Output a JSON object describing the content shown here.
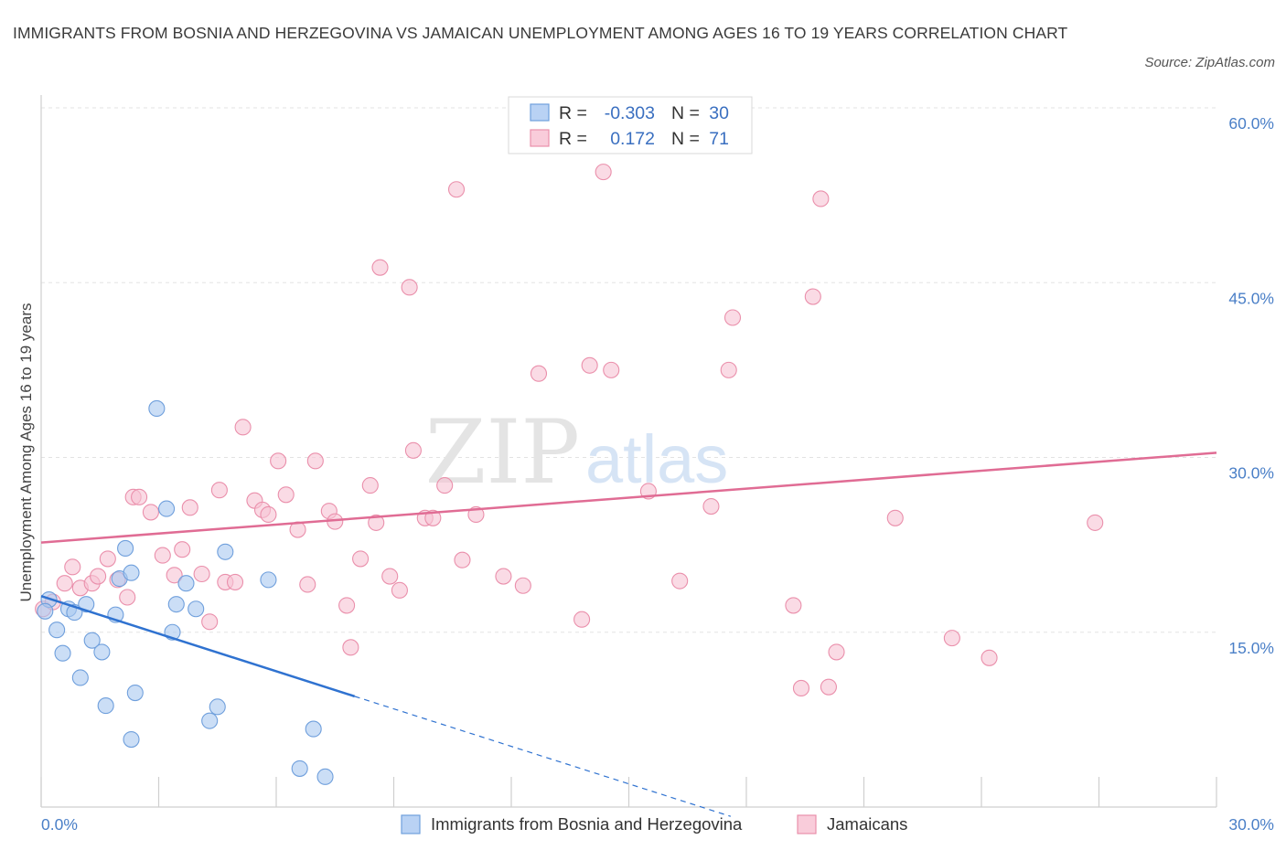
{
  "title": "IMMIGRANTS FROM BOSNIA AND HERZEGOVINA VS JAMAICAN UNEMPLOYMENT AMONG AGES 16 TO 19 YEARS CORRELATION CHART",
  "source": "Source: ZipAtlas.com",
  "colors": {
    "blue": "#a9c8f0",
    "blue_stroke": "#6f9fdc",
    "blue_line": "#2f72d0",
    "pink": "#f7c3d3",
    "pink_stroke": "#ea8fab",
    "pink_line": "#e06c94",
    "axis_label": "#4a7fc7"
  },
  "legend": {
    "rows": [
      {
        "r_label": "R =",
        "r_value": "-0.303",
        "n_label": "N =",
        "n_value": "30"
      },
      {
        "r_label": "R =",
        "r_value": "0.172",
        "n_label": "N =",
        "n_value": "71"
      }
    ]
  },
  "chart_data": {
    "type": "scatter",
    "title": "IMMIGRANTS FROM BOSNIA AND HERZEGOVINA VS JAMAICAN UNEMPLOYMENT AMONG AGES 16 TO 19 YEARS CORRELATION CHART",
    "xlabel": "",
    "ylabel": "Unemployment Among Ages 16 to 19 years",
    "xlim": [
      0,
      30
    ],
    "ylim": [
      0,
      60
    ],
    "x_tick_labels": [
      "0.0%",
      "30.0%"
    ],
    "y_ticks": [
      15,
      30,
      45,
      60
    ],
    "y_tick_labels": [
      "15.0%",
      "30.0%",
      "45.0%",
      "60.0%"
    ],
    "grid": true,
    "legend_position": "top-center",
    "series": [
      {
        "name": "Immigrants from Bosnia and Herzegovina",
        "color": "#a9c8f0",
        "points": [
          [
            0.2,
            17.8
          ],
          [
            0.4,
            15.2
          ],
          [
            0.55,
            13.2
          ],
          [
            0.7,
            17.0
          ],
          [
            0.85,
            16.7
          ],
          [
            1.0,
            11.1
          ],
          [
            1.15,
            17.4
          ],
          [
            1.3,
            14.3
          ],
          [
            1.55,
            13.3
          ],
          [
            1.65,
            8.7
          ],
          [
            1.9,
            16.5
          ],
          [
            2.0,
            19.6
          ],
          [
            2.15,
            22.2
          ],
          [
            2.3,
            5.8
          ],
          [
            2.4,
            9.8
          ],
          [
            2.95,
            34.2
          ],
          [
            3.2,
            25.6
          ],
          [
            3.35,
            15.0
          ],
          [
            3.45,
            17.4
          ],
          [
            3.7,
            19.2
          ],
          [
            3.95,
            17.0
          ],
          [
            4.3,
            7.4
          ],
          [
            4.5,
            8.6
          ],
          [
            4.7,
            21.9
          ],
          [
            5.8,
            19.5
          ],
          [
            6.6,
            3.3
          ],
          [
            6.95,
            6.7
          ],
          [
            7.25,
            2.6
          ],
          [
            0.1,
            16.8
          ],
          [
            2.3,
            20.1
          ]
        ],
        "trend": {
          "x0": 0,
          "y0": 18.1,
          "x1": 8.0,
          "y1": 9.5,
          "dash_to_x": 17.6,
          "dash_to_y": -0.8
        }
      },
      {
        "name": "Jamaicans",
        "color": "#f7c3d3",
        "points": [
          [
            0.05,
            17.0
          ],
          [
            0.3,
            17.6
          ],
          [
            0.6,
            19.2
          ],
          [
            0.8,
            20.6
          ],
          [
            1.0,
            18.8
          ],
          [
            1.3,
            19.2
          ],
          [
            1.45,
            19.8
          ],
          [
            1.7,
            21.3
          ],
          [
            1.95,
            19.5
          ],
          [
            2.2,
            18.0
          ],
          [
            2.35,
            26.6
          ],
          [
            2.5,
            26.6
          ],
          [
            2.8,
            25.3
          ],
          [
            3.1,
            21.6
          ],
          [
            3.4,
            19.9
          ],
          [
            3.6,
            22.1
          ],
          [
            3.8,
            25.7
          ],
          [
            4.1,
            20.0
          ],
          [
            4.3,
            15.9
          ],
          [
            4.55,
            27.2
          ],
          [
            4.7,
            19.3
          ],
          [
            4.95,
            19.3
          ],
          [
            5.15,
            32.6
          ],
          [
            5.45,
            26.3
          ],
          [
            5.65,
            25.5
          ],
          [
            5.8,
            25.1
          ],
          [
            6.05,
            29.7
          ],
          [
            6.25,
            26.8
          ],
          [
            6.55,
            23.8
          ],
          [
            6.8,
            19.1
          ],
          [
            7.0,
            29.7
          ],
          [
            7.35,
            25.4
          ],
          [
            7.5,
            24.5
          ],
          [
            7.8,
            17.3
          ],
          [
            7.9,
            13.7
          ],
          [
            8.15,
            21.3
          ],
          [
            8.4,
            27.6
          ],
          [
            8.55,
            24.4
          ],
          [
            8.65,
            46.3
          ],
          [
            8.9,
            19.8
          ],
          [
            9.15,
            18.6
          ],
          [
            9.4,
            44.6
          ],
          [
            9.5,
            30.6
          ],
          [
            9.8,
            24.8
          ],
          [
            10.0,
            24.8
          ],
          [
            10.3,
            27.6
          ],
          [
            10.6,
            53.0
          ],
          [
            10.75,
            21.2
          ],
          [
            11.1,
            25.1
          ],
          [
            11.8,
            19.8
          ],
          [
            12.3,
            19.0
          ],
          [
            12.7,
            37.2
          ],
          [
            13.8,
            16.1
          ],
          [
            14.0,
            37.9
          ],
          [
            14.35,
            54.5
          ],
          [
            14.55,
            37.5
          ],
          [
            15.5,
            27.1
          ],
          [
            16.3,
            19.4
          ],
          [
            17.1,
            25.8
          ],
          [
            17.55,
            37.5
          ],
          [
            17.65,
            42.0
          ],
          [
            19.2,
            17.3
          ],
          [
            19.4,
            10.2
          ],
          [
            19.7,
            43.8
          ],
          [
            19.9,
            52.2
          ],
          [
            20.1,
            10.3
          ],
          [
            20.3,
            13.3
          ],
          [
            21.8,
            24.8
          ],
          [
            23.25,
            14.5
          ],
          [
            24.2,
            12.8
          ],
          [
            26.9,
            24.4
          ]
        ],
        "trend": {
          "x0": 0,
          "y0": 22.7,
          "x1": 30,
          "y1": 30.4
        }
      }
    ]
  },
  "bottom_legend": [
    {
      "label": "Immigrants from Bosnia and Herzegovina"
    },
    {
      "label": "Jamaicans"
    }
  ],
  "watermark": {
    "bold": "ZIP",
    "light": "atlas"
  }
}
